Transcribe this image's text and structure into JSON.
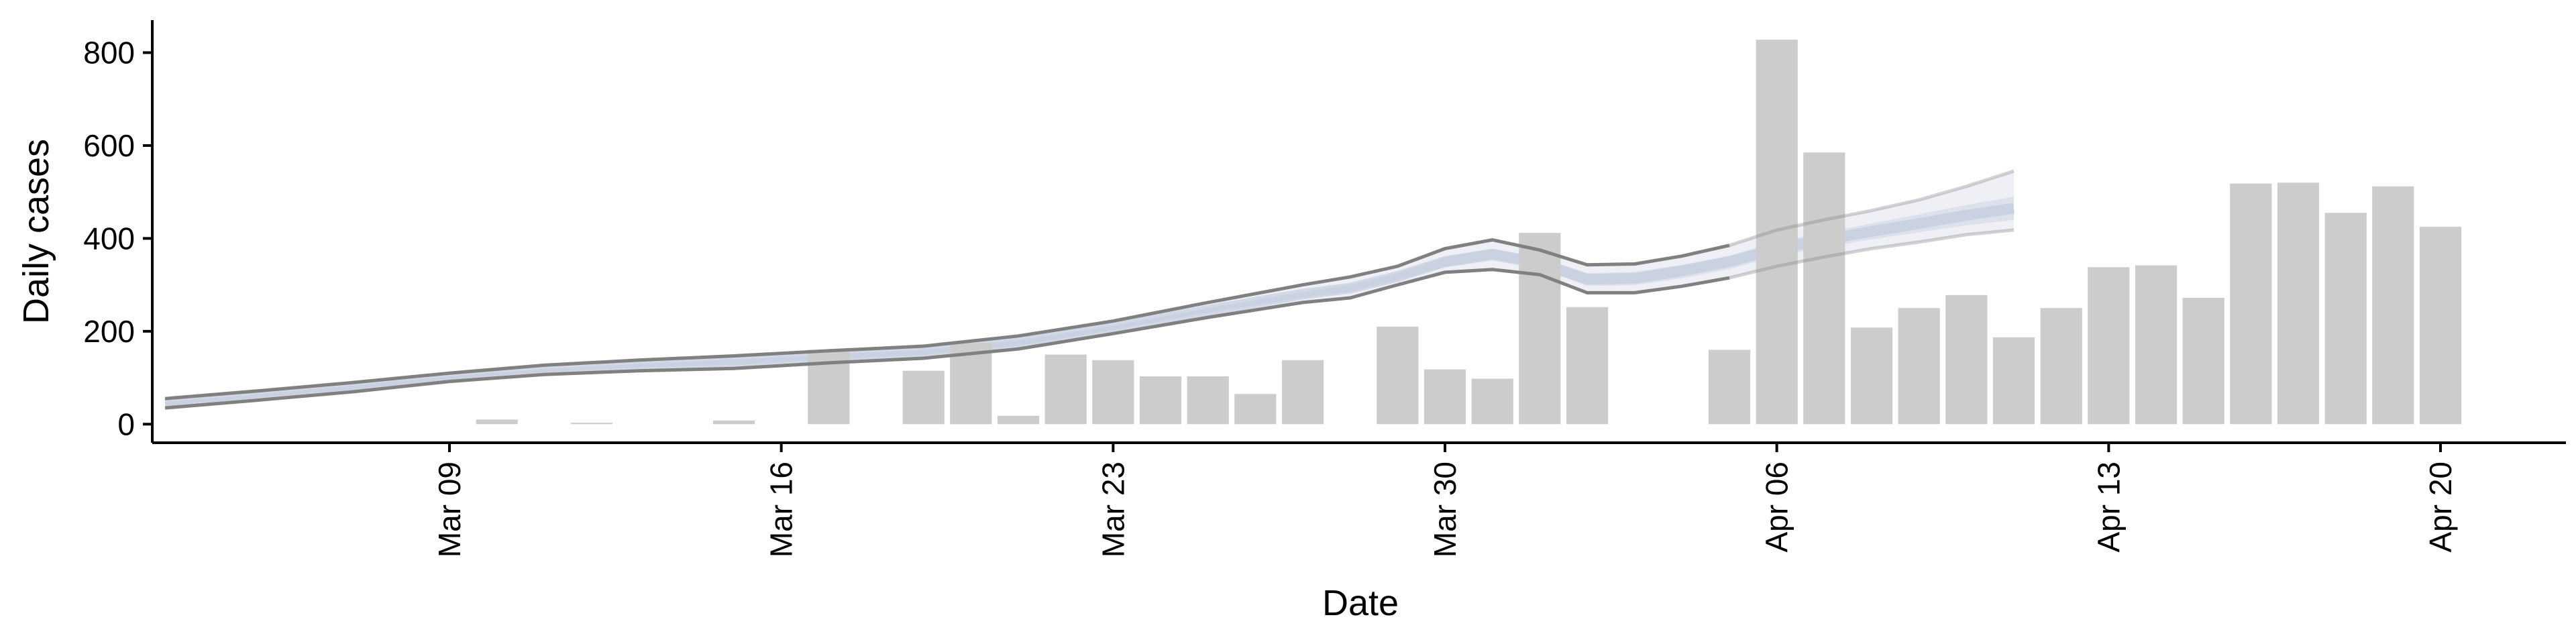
{
  "chart_data": {
    "type": "bar",
    "xlabel": "Date",
    "ylabel": "Daily cases",
    "ylim": [
      -40,
      870
    ],
    "grid": false,
    "legend": "none",
    "y_ticks": [
      0,
      200,
      400,
      600,
      800
    ],
    "x_ticks": [
      {
        "date": "2020-03-09",
        "label": "Mar 09"
      },
      {
        "date": "2020-03-16",
        "label": "Mar 16"
      },
      {
        "date": "2020-03-23",
        "label": "Mar 23"
      },
      {
        "date": "2020-03-30",
        "label": "Mar 30"
      },
      {
        "date": "2020-04-06",
        "label": "Apr 06"
      },
      {
        "date": "2020-04-13",
        "label": "Apr 13"
      },
      {
        "date": "2020-04-20",
        "label": "Apr 20"
      }
    ],
    "x_range": [
      "2020-03-01",
      "2020-04-22"
    ],
    "colors": {
      "bars": "#cccccc",
      "ci_outer_line": "#808080",
      "band_90": "#eef0f6",
      "band_50": "#dce1ec",
      "band_median": "#bcc4d9"
    },
    "bars": {
      "name": "Daily cases",
      "points": [
        {
          "date": "2020-03-10",
          "value": 10
        },
        {
          "date": "2020-03-12",
          "value": 3
        },
        {
          "date": "2020-03-15",
          "value": 8
        },
        {
          "date": "2020-03-17",
          "value": 160
        },
        {
          "date": "2020-03-19",
          "value": 115
        },
        {
          "date": "2020-03-20",
          "value": 175
        },
        {
          "date": "2020-03-21",
          "value": 18
        },
        {
          "date": "2020-03-22",
          "value": 150
        },
        {
          "date": "2020-03-23",
          "value": 138
        },
        {
          "date": "2020-03-24",
          "value": 103
        },
        {
          "date": "2020-03-25",
          "value": 103
        },
        {
          "date": "2020-03-26",
          "value": 65
        },
        {
          "date": "2020-03-27",
          "value": 138
        },
        {
          "date": "2020-03-29",
          "value": 210
        },
        {
          "date": "2020-03-30",
          "value": 118
        },
        {
          "date": "2020-03-31",
          "value": 98
        },
        {
          "date": "2020-04-01",
          "value": 412
        },
        {
          "date": "2020-04-02",
          "value": 252
        },
        {
          "date": "2020-04-05",
          "value": 160
        },
        {
          "date": "2020-04-06",
          "value": 828
        },
        {
          "date": "2020-04-07",
          "value": 585
        },
        {
          "date": "2020-04-08",
          "value": 208
        },
        {
          "date": "2020-04-09",
          "value": 250
        },
        {
          "date": "2020-04-10",
          "value": 278
        },
        {
          "date": "2020-04-11",
          "value": 187
        },
        {
          "date": "2020-04-12",
          "value": 250
        },
        {
          "date": "2020-04-13",
          "value": 338
        },
        {
          "date": "2020-04-14",
          "value": 342
        },
        {
          "date": "2020-04-15",
          "value": 272
        },
        {
          "date": "2020-04-16",
          "value": 518
        },
        {
          "date": "2020-04-17",
          "value": 520
        },
        {
          "date": "2020-04-18",
          "value": 455
        },
        {
          "date": "2020-04-19",
          "value": 512
        },
        {
          "date": "2020-04-20",
          "value": 425
        }
      ]
    },
    "estimate": {
      "dates": [
        "2020-03-03",
        "2020-03-05",
        "2020-03-07",
        "2020-03-09",
        "2020-03-11",
        "2020-03-13",
        "2020-03-15",
        "2020-03-17",
        "2020-03-19",
        "2020-03-21",
        "2020-03-23",
        "2020-03-25",
        "2020-03-27",
        "2020-03-28",
        "2020-03-29",
        "2020-03-30",
        "2020-03-31",
        "2020-04-01",
        "2020-04-02",
        "2020-04-03",
        "2020-04-04",
        "2020-04-05",
        "2020-04-06",
        "2020-04-07",
        "2020-04-08",
        "2020-04-09",
        "2020-04-10",
        "2020-04-11"
      ],
      "upper90": [
        55,
        72,
        90,
        110,
        127,
        138,
        147,
        158,
        168,
        190,
        222,
        262,
        300,
        317,
        340,
        378,
        397,
        375,
        343,
        345,
        362,
        385,
        418,
        440,
        460,
        483,
        512,
        545
      ],
      "lower90": [
        35,
        52,
        70,
        92,
        107,
        115,
        120,
        132,
        142,
        162,
        195,
        230,
        262,
        272,
        300,
        327,
        333,
        322,
        283,
        283,
        297,
        315,
        340,
        360,
        378,
        392,
        408,
        418
      ],
      "upper50": [
        48,
        65,
        84,
        103,
        119,
        130,
        139,
        150,
        160,
        181,
        212,
        250,
        285,
        300,
        325,
        360,
        378,
        358,
        325,
        328,
        343,
        363,
        393,
        413,
        432,
        452,
        472,
        490
      ],
      "lower50": [
        40,
        57,
        75,
        96,
        112,
        122,
        128,
        139,
        149,
        169,
        203,
        240,
        272,
        285,
        310,
        338,
        352,
        335,
        298,
        299,
        314,
        334,
        362,
        380,
        398,
        413,
        428,
        440
      ],
      "median": [
        44,
        61,
        80,
        100,
        116,
        126,
        134,
        145,
        155,
        175,
        208,
        245,
        280,
        293,
        318,
        350,
        366,
        347,
        312,
        314,
        330,
        350,
        378,
        397,
        415,
        432,
        450,
        465
      ]
    }
  }
}
